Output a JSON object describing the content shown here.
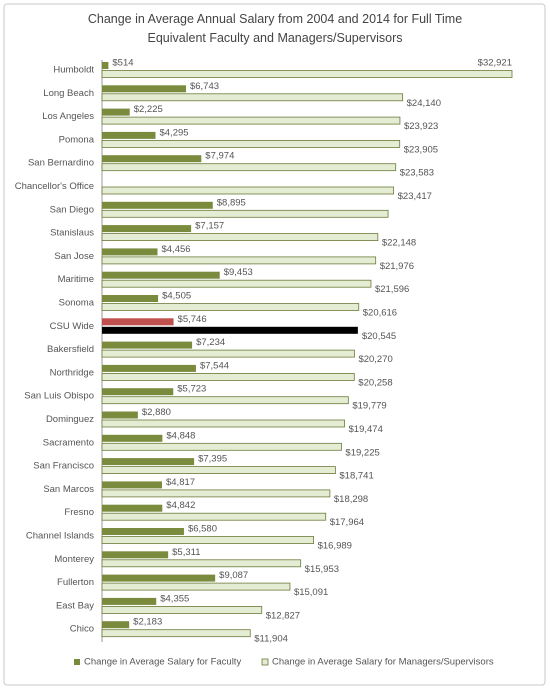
{
  "chart_data": {
    "type": "hbar",
    "title": "Change in Average Annual Salary from 2004 and 2014 for Full Time Equivalent Faculty and Managers/Supervisors",
    "categories": [
      "Humboldt",
      "Long Beach",
      "Los Angeles",
      "Pomona",
      "San Bernardino",
      "Chancellor's Office",
      "San Diego",
      "Stanislaus",
      "San Jose",
      "Maritime",
      "Sonoma",
      "CSU Wide",
      "Bakersfield",
      "Northridge",
      "San Luis Obispo",
      "Dominguez",
      "Sacramento",
      "San Francisco",
      "San Marcos",
      "Fresno",
      "Channel Islands",
      "Monterey",
      "Fullerton",
      "East Bay",
      "Chico"
    ],
    "highlight": "CSU Wide",
    "series": [
      {
        "name": "Change in Average Salary for Faculty",
        "color": "#7b8b3d",
        "highlight_color": "#c0504d",
        "values": [
          514,
          6743,
          2225,
          4295,
          7974,
          null,
          8895,
          7157,
          4456,
          9453,
          4505,
          5746,
          7234,
          7544,
          5723,
          2880,
          4848,
          7395,
          4817,
          4842,
          6580,
          5311,
          9087,
          4355,
          2183
        ],
        "value_labels": [
          "$514",
          "$6,743",
          "$2,225",
          "$4,295",
          "$7,974",
          null,
          "$8,895",
          "$7,157",
          "$4,456",
          "$9,453",
          "$4,505",
          "$5,746",
          "$7,234",
          "$7,544",
          "$5,723",
          "$2,880",
          "$4,848",
          "$7,395",
          "$4,817",
          "$4,842",
          "$6,580",
          "$5,311",
          "$9,087",
          "$4,355",
          "$2,183"
        ]
      },
      {
        "name": "Change in Average Salary for Managers/Supervisors",
        "color": "#e4ecd3",
        "highlight_color": "#000000",
        "values": [
          32921,
          24140,
          23923,
          23905,
          23583,
          23417,
          22970,
          22148,
          21976,
          21596,
          20616,
          20545,
          20270,
          20258,
          19779,
          19474,
          19225,
          18741,
          18298,
          17964,
          16989,
          15953,
          15091,
          12827,
          11904
        ],
        "value_labels": [
          "$32,921",
          "$24,140",
          "$23,923",
          "$23,905",
          "$23,583",
          "$23,417",
          null,
          "$22,148",
          "$21,976",
          "$21,596",
          "$20,616",
          "$20,545",
          "$20,270",
          "$20,258",
          "$19,779",
          "$19,474",
          "$19,225",
          "$18,741",
          "$18,298",
          "$17,964",
          "$16,989",
          "$15,953",
          "$15,091",
          "$12,827",
          "$11,904"
        ]
      }
    ]
  }
}
